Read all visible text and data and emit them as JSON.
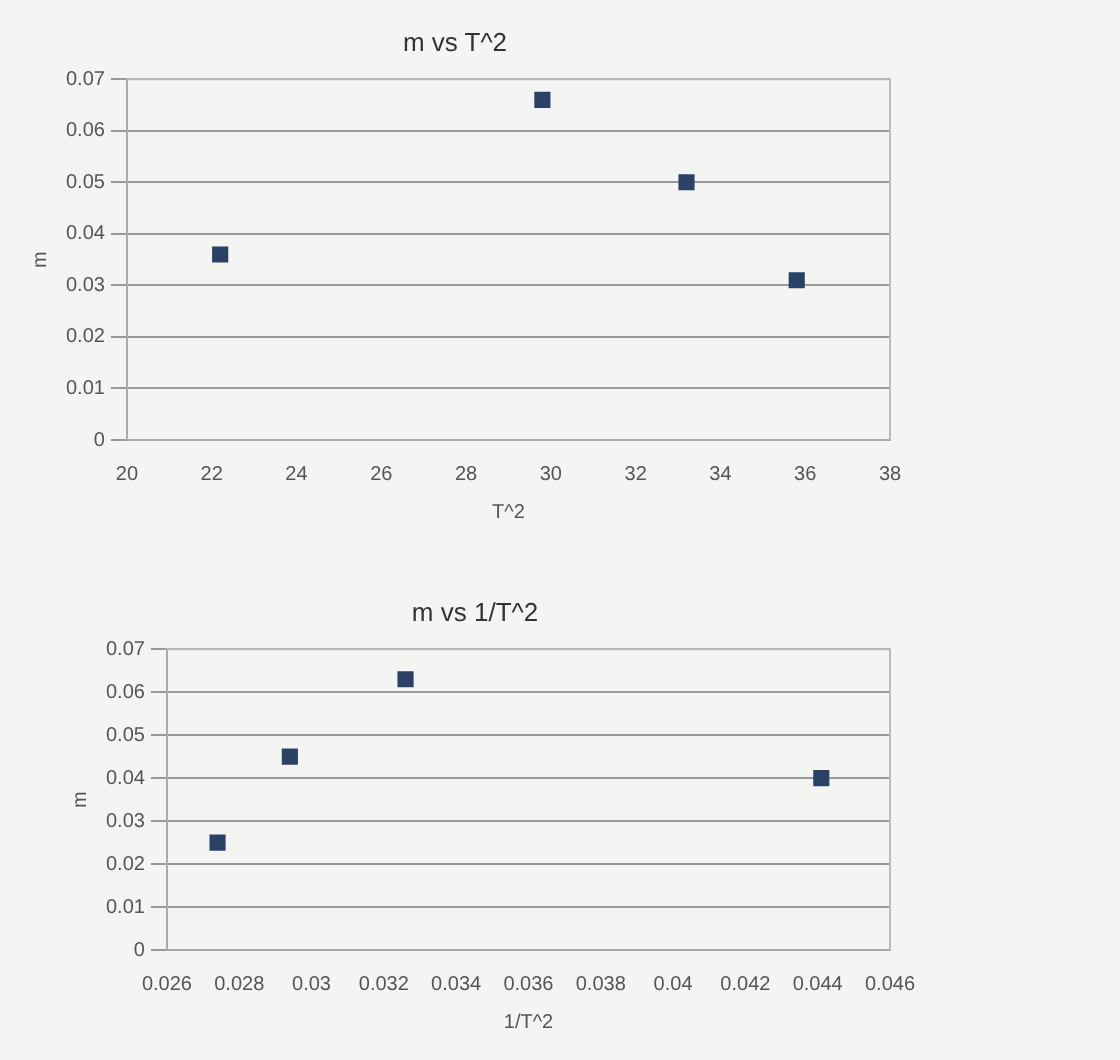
{
  "chart_data": [
    {
      "type": "scatter",
      "title": "m vs T^2",
      "xlabel": "T^2",
      "ylabel": "m",
      "x": [
        22.2,
        29.8,
        33.2,
        35.8
      ],
      "values": [
        0.036,
        0.066,
        0.05,
        0.031
      ],
      "color": "#2b4266",
      "marker": "square",
      "xlim": [
        20,
        38
      ],
      "xticks": [
        20,
        22,
        24,
        26,
        28,
        30,
        32,
        34,
        36,
        38
      ],
      "ylim": [
        0,
        0.07
      ],
      "yticks": [
        0,
        0.01,
        0.02,
        0.03,
        0.04,
        0.05,
        0.06,
        0.07
      ],
      "grid": "y",
      "legend": false
    },
    {
      "type": "scatter",
      "title": "m vs 1/T^2",
      "xlabel": "1/T^2",
      "ylabel": "m",
      "x": [
        0.0274,
        0.0294,
        0.0326,
        0.0441
      ],
      "values": [
        0.025,
        0.045,
        0.063,
        0.04
      ],
      "color": "#2b4266",
      "marker": "square",
      "xlim": [
        0.026,
        0.046
      ],
      "xticks": [
        0.026,
        0.028,
        0.03,
        0.032,
        0.034,
        0.036,
        0.038,
        0.04,
        0.042,
        0.044,
        0.046
      ],
      "ylim": [
        0,
        0.07
      ],
      "yticks": [
        0,
        0.01,
        0.02,
        0.03,
        0.04,
        0.05,
        0.06,
        0.07
      ],
      "grid": "y",
      "legend": false
    }
  ]
}
